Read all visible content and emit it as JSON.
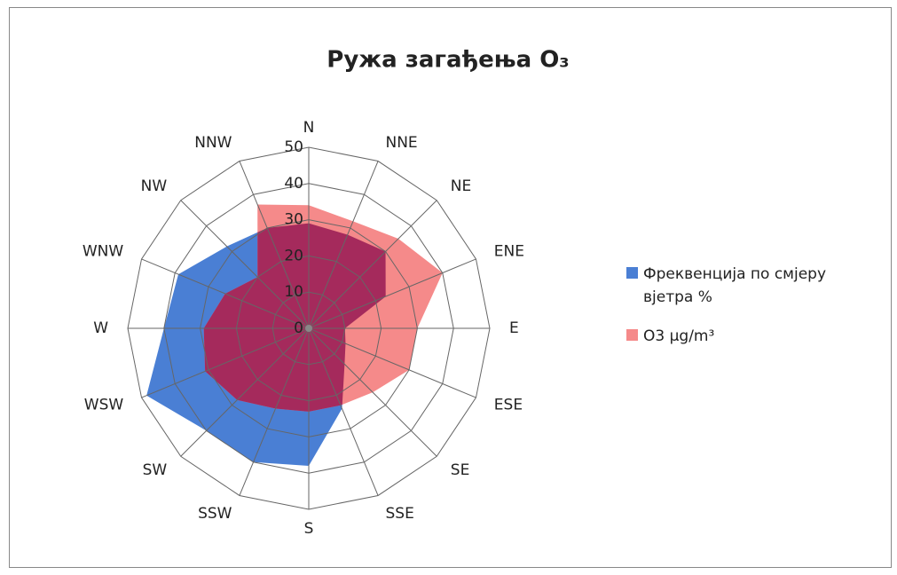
{
  "chart_data": {
    "type": "radar",
    "title": "Ружа загађења O₃",
    "categories": [
      "N",
      "NNE",
      "NE",
      "ENE",
      "E",
      "ESE",
      "SE",
      "SSE",
      "S",
      "SSW",
      "SW",
      "WSW",
      "W",
      "WNW",
      "NW",
      "NNW"
    ],
    "series": [
      {
        "name": "Фреквенција по смјеру вјетра %",
        "color": "#4a7fd4",
        "values": [
          29,
          28,
          30,
          23,
          10,
          11,
          14,
          24,
          38,
          40,
          40,
          48.5,
          40,
          39,
          32,
          30
        ]
      },
      {
        "name": "O3 µg/m³",
        "color": "#f58a8a",
        "values": [
          34,
          32,
          35,
          40,
          30,
          30,
          25,
          23,
          23,
          24,
          28,
          31,
          29,
          25,
          20,
          37
        ]
      }
    ],
    "overlap_color": "#a52a5c",
    "ylim": [
      0,
      50
    ],
    "yticks": [
      0,
      10,
      20,
      30,
      40,
      50
    ],
    "grid": true,
    "legend": "right"
  }
}
